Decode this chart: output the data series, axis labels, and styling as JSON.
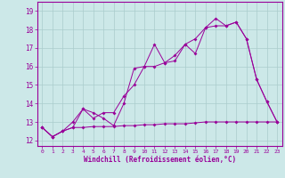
{
  "xlabel": "Windchill (Refroidissement éolien,°C)",
  "color": "#990099",
  "bg_color": "#cce8e8",
  "grid_color": "#aacccc",
  "xlim": [
    -0.5,
    23.5
  ],
  "ylim": [
    11.7,
    19.5
  ],
  "xticks": [
    0,
    1,
    2,
    3,
    4,
    5,
    6,
    7,
    8,
    9,
    10,
    11,
    12,
    13,
    14,
    15,
    16,
    17,
    18,
    19,
    20,
    21,
    22,
    23
  ],
  "yticks": [
    12,
    13,
    14,
    15,
    16,
    17,
    18,
    19
  ],
  "line1_x": [
    0,
    1,
    2,
    3,
    4,
    5,
    6,
    7,
    8,
    9,
    10,
    11,
    12,
    13,
    14,
    15,
    16,
    17,
    18,
    19,
    20,
    21,
    22,
    23
  ],
  "line1_y": [
    12.7,
    12.2,
    12.5,
    13.0,
    13.7,
    13.5,
    13.2,
    12.8,
    14.0,
    15.9,
    16.0,
    17.2,
    16.2,
    16.3,
    17.2,
    16.7,
    18.1,
    18.6,
    18.2,
    18.4,
    17.5,
    15.3,
    14.1,
    13.0
  ],
  "line2_x": [
    0,
    1,
    2,
    3,
    4,
    5,
    6,
    7,
    8,
    9,
    10,
    11,
    12,
    13,
    14,
    15,
    16,
    17,
    18,
    19,
    20,
    21,
    22,
    23
  ],
  "line2_y": [
    12.7,
    12.2,
    12.5,
    12.7,
    13.7,
    13.2,
    13.5,
    13.5,
    14.4,
    15.0,
    16.0,
    16.0,
    16.2,
    16.6,
    17.2,
    17.5,
    18.1,
    18.2,
    18.2,
    18.4,
    17.5,
    15.3,
    14.1,
    13.0
  ],
  "line3_x": [
    0,
    1,
    2,
    3,
    4,
    5,
    6,
    7,
    8,
    9,
    10,
    11,
    12,
    13,
    14,
    15,
    16,
    17,
    18,
    19,
    20,
    21,
    22,
    23
  ],
  "line3_y": [
    12.7,
    12.2,
    12.5,
    12.7,
    12.7,
    12.75,
    12.75,
    12.75,
    12.8,
    12.8,
    12.85,
    12.85,
    12.9,
    12.9,
    12.9,
    12.95,
    13.0,
    13.0,
    13.0,
    13.0,
    13.0,
    13.0,
    13.0,
    13.0
  ]
}
